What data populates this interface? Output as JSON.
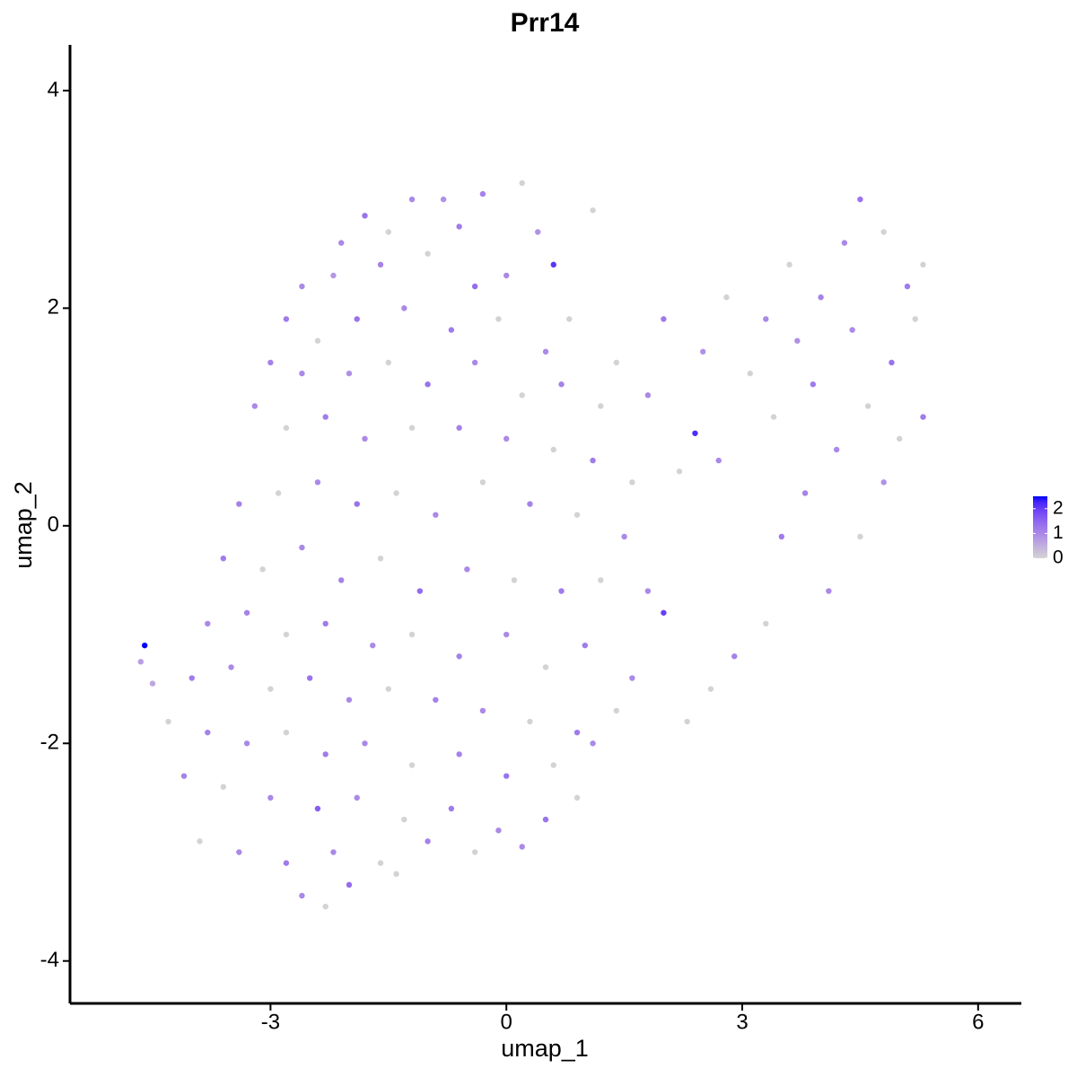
{
  "chart_data": {
    "type": "scatter",
    "title": "Prr14",
    "x_label": "umap_1",
    "y_label": "umap_2",
    "xlim": [
      -5.55,
      6.55
    ],
    "xticks": [
      -3,
      0,
      3,
      6
    ],
    "ylim": [
      -4.39,
      4.42
    ],
    "yticks": [
      -4,
      -2,
      0,
      2,
      4
    ],
    "color_scale": [
      "#d3d3d3",
      "#0000ff"
    ],
    "clim": [
      0,
      2.5
    ],
    "cticks": [
      0,
      1,
      2
    ],
    "series": [
      {
        "name": "Prr14",
        "x": [
          -1.2,
          -0.8,
          -0.3,
          0.2,
          -1.8,
          -2.1,
          -1.5,
          -0.6,
          0.6,
          1.1,
          -2.6,
          -2.2,
          -1.6,
          -1.0,
          -0.4,
          0.0,
          0.4,
          -2.8,
          -2.4,
          -1.9,
          -1.3,
          -0.7,
          -0.1,
          0.5,
          0.8,
          1.4,
          -3.0,
          -2.6,
          -2.0,
          -1.5,
          -1.0,
          -0.4,
          0.2,
          0.7,
          1.2,
          1.8,
          2.0,
          2.5,
          2.8,
          3.3,
          3.6,
          4.0,
          4.3,
          4.5,
          4.8,
          5.1,
          5.3,
          5.2,
          3.7,
          4.4,
          4.9,
          3.1,
          3.9,
          4.6,
          5.0,
          5.3,
          3.4,
          4.2,
          4.8,
          3.8,
          4.5,
          3.5,
          4.1,
          3.3,
          2.9,
          2.6,
          2.3,
          2.7,
          2.4,
          2.2,
          -3.2,
          -2.8,
          -2.3,
          -1.8,
          -1.2,
          -0.6,
          0.0,
          0.6,
          1.1,
          1.6,
          -3.4,
          -2.9,
          -2.4,
          -1.9,
          -1.4,
          -0.9,
          -0.3,
          0.3,
          0.9,
          1.5,
          -3.6,
          -3.1,
          -2.6,
          -2.1,
          -1.6,
          -1.1,
          -0.5,
          0.1,
          0.7,
          1.2,
          1.8,
          2.0,
          -3.8,
          -3.3,
          -2.8,
          -2.3,
          -1.7,
          -1.2,
          -0.6,
          0.0,
          0.5,
          1.0,
          1.6,
          -4.6,
          -4.65,
          -4.5,
          -4.0,
          -3.5,
          -3.0,
          -2.5,
          -2.0,
          -1.5,
          -0.9,
          -0.3,
          0.3,
          0.9,
          1.4,
          -4.3,
          -3.8,
          -3.3,
          -2.8,
          -2.3,
          -1.8,
          -1.2,
          -0.6,
          0.0,
          0.6,
          1.1,
          -4.1,
          -3.6,
          -3.0,
          -2.4,
          -1.9,
          -1.3,
          -0.7,
          -0.1,
          0.5,
          0.9,
          -3.9,
          -3.4,
          -2.8,
          -2.2,
          -1.6,
          -1.0,
          -0.4,
          0.2,
          -2.6,
          -2.0,
          -2.3,
          -1.4
        ],
        "y": [
          3.0,
          3.0,
          3.05,
          3.15,
          2.85,
          2.6,
          2.7,
          2.75,
          2.4,
          2.9,
          2.2,
          2.3,
          2.4,
          2.5,
          2.2,
          2.3,
          2.7,
          1.9,
          1.7,
          1.9,
          2.0,
          1.8,
          1.9,
          1.6,
          1.9,
          1.5,
          1.5,
          1.4,
          1.4,
          1.5,
          1.3,
          1.5,
          1.2,
          1.3,
          1.1,
          1.2,
          1.9,
          1.6,
          2.1,
          1.9,
          2.4,
          2.1,
          2.6,
          3.0,
          2.7,
          2.2,
          2.4,
          1.9,
          1.7,
          1.8,
          1.5,
          1.4,
          1.3,
          1.1,
          0.8,
          1.0,
          1.0,
          0.7,
          0.4,
          0.3,
          -0.1,
          -0.1,
          -0.6,
          -0.9,
          -1.2,
          -1.5,
          -1.8,
          0.6,
          0.85,
          0.5,
          1.1,
          0.9,
          1.0,
          0.8,
          0.9,
          0.9,
          0.8,
          0.7,
          0.6,
          0.4,
          0.2,
          0.3,
          0.4,
          0.2,
          0.3,
          0.1,
          0.4,
          0.2,
          0.1,
          -0.1,
          -0.3,
          -0.4,
          -0.2,
          -0.5,
          -0.3,
          -0.6,
          -0.4,
          -0.5,
          -0.6,
          -0.5,
          -0.6,
          -0.8,
          -0.9,
          -0.8,
          -1.0,
          -0.9,
          -1.1,
          -1.0,
          -1.2,
          -1.0,
          -1.3,
          -1.1,
          -1.4,
          -1.1,
          -1.25,
          -1.45,
          -1.4,
          -1.3,
          -1.5,
          -1.4,
          -1.6,
          -1.5,
          -1.6,
          -1.7,
          -1.8,
          -1.9,
          -1.7,
          -1.8,
          -1.9,
          -2.0,
          -1.9,
          -2.1,
          -2.0,
          -2.2,
          -2.1,
          -2.3,
          -2.2,
          -2.0,
          -2.3,
          -2.4,
          -2.5,
          -2.6,
          -2.5,
          -2.7,
          -2.6,
          -2.8,
          -2.7,
          -2.5,
          -2.9,
          -3.0,
          -3.1,
          -3.0,
          -3.1,
          -2.9,
          -3.0,
          -2.95,
          -3.4,
          -3.3,
          -3.5,
          -3.2
        ],
        "values": [
          1,
          0.9,
          1.1,
          0,
          1.3,
          1,
          0,
          1.2,
          2.1,
          0,
          1,
          0.8,
          1.1,
          0,
          1.4,
          1,
          0.9,
          1.2,
          0,
          1.3,
          1,
          1.2,
          0,
          1,
          0,
          0,
          1.1,
          1,
          0.9,
          0,
          1.3,
          1,
          0,
          1.1,
          0,
          1,
          1.2,
          0.9,
          0,
          1,
          0,
          1.1,
          1,
          1.3,
          0,
          1.2,
          0,
          0,
          0.9,
          1,
          1.3,
          0,
          1.2,
          0,
          0,
          1.2,
          0,
          1,
          0.9,
          1.1,
          0,
          1.2,
          1,
          0,
          1.1,
          0,
          0,
          1,
          2.2,
          0,
          1,
          0,
          1.2,
          1,
          0,
          1.1,
          1,
          0,
          1.2,
          0,
          1.1,
          0,
          1,
          1.3,
          0,
          1,
          0,
          1.1,
          0,
          1,
          1.2,
          0,
          1,
          1.1,
          0,
          1.4,
          1,
          0,
          1.2,
          0,
          1,
          2.0,
          1,
          1.1,
          0,
          1.2,
          1,
          0,
          1.1,
          1,
          0,
          1.2,
          1,
          2.5,
          0.7,
          0.6,
          1.2,
          1,
          0,
          1.3,
          1,
          0,
          1.1,
          1,
          0,
          1.2,
          0,
          0,
          1.1,
          1,
          0,
          1.2,
          1,
          0,
          1.1,
          1.3,
          0,
          1,
          1.1,
          0,
          1,
          1.6,
          1,
          0,
          1.2,
          1,
          1.3,
          0,
          0,
          1,
          1.2,
          1,
          0,
          1.1,
          0,
          1,
          1,
          1.4,
          0,
          0
        ]
      }
    ]
  }
}
